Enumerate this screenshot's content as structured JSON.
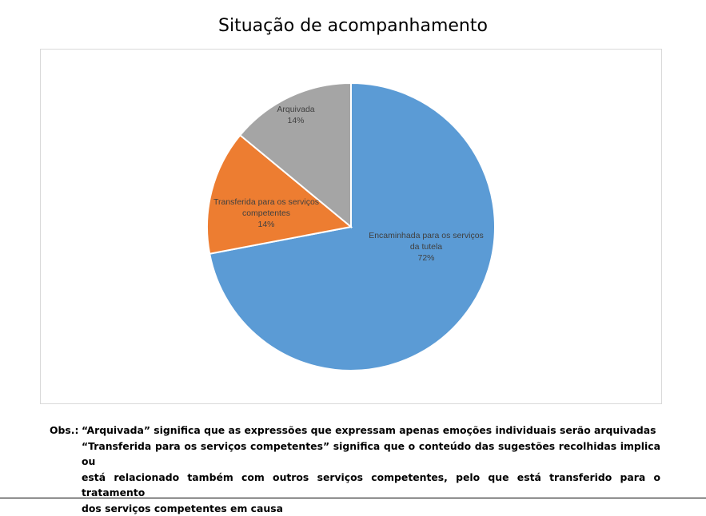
{
  "chart_data": {
    "type": "pie",
    "title": "Situação de acompanhamento",
    "slices": [
      {
        "label_lines": [
          "Encaminhada para os serviços",
          "da tutela"
        ],
        "percent_label": "72%",
        "value": 72,
        "color": "#5b9bd5"
      },
      {
        "label_lines": [
          "Transferida para os serviços",
          "competentes"
        ],
        "percent_label": "14%",
        "value": 14,
        "color": "#ed7d31"
      },
      {
        "label_lines": [
          "Arquivada"
        ],
        "percent_label": "14%",
        "value": 14,
        "color": "#a5a5a5"
      }
    ],
    "start": "12 o'clock",
    "direction": "clockwise",
    "legend": "none",
    "data_labels": "inside"
  },
  "notes": {
    "heading": "Obs.:",
    "lines": [
      "“Arquivada” significa que as expressões que expressam apenas emoções individuais serão arquivadas",
      "“Transferida para os serviços competentes” significa que o conteúdo das sugestões recolhidas implica ou",
      "está relacionado também com outros serviços competentes, pelo que está transferido para o tratamento",
      "dos serviços competentes em causa"
    ]
  }
}
